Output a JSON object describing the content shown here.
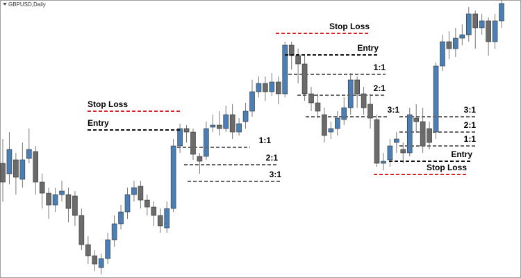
{
  "chart_data": {
    "type": "candlestick",
    "title": "GBPUSD,Daily",
    "ylim": [
      0,
      400
    ],
    "up_color": "#4a7fb6",
    "down_color": "#6b6b6b",
    "open": [
      165,
      150,
      170,
      142,
      172,
      182,
      138,
      122,
      105,
      120,
      120,
      118,
      90,
      48,
      32,
      15,
      28,
      55,
      78,
      95,
      120,
      132,
      112,
      102,
      90,
      72,
      100,
      190,
      215,
      210,
      175,
      175,
      217,
      220,
      215,
      235,
      210,
      225,
      240,
      268,
      280,
      268,
      282,
      265,
      335,
      320,
      308,
      265,
      252,
      235,
      210,
      215,
      228,
      245,
      285,
      265,
      250,
      228,
      165,
      170,
      195,
      185,
      180,
      230,
      225,
      215,
      210,
      305,
      340,
      330,
      345,
      350,
      380,
      360,
      370,
      340,
      370
    ],
    "high": [
      200,
      210,
      180,
      195,
      215,
      190,
      150,
      130,
      130,
      140,
      130,
      125,
      100,
      60,
      40,
      35,
      65,
      90,
      105,
      130,
      140,
      140,
      120,
      110,
      100,
      110,
      200,
      222,
      220,
      215,
      180,
      225,
      235,
      240,
      248,
      250,
      230,
      252,
      285,
      290,
      290,
      295,
      290,
      340,
      340,
      330,
      320,
      275,
      265,
      245,
      225,
      240,
      260,
      295,
      290,
      275,
      265,
      235,
      180,
      200,
      210,
      195,
      245,
      250,
      245,
      225,
      310,
      350,
      355,
      360,
      365,
      390,
      385,
      380,
      375,
      380,
      400
    ],
    "low": [
      110,
      135,
      120,
      130,
      165,
      120,
      100,
      85,
      95,
      110,
      80,
      75,
      40,
      20,
      10,
      5,
      20,
      45,
      70,
      85,
      110,
      100,
      90,
      75,
      65,
      65,
      95,
      180,
      195,
      170,
      150,
      170,
      210,
      205,
      210,
      200,
      205,
      215,
      232,
      260,
      255,
      262,
      250,
      260,
      300,
      280,
      255,
      240,
      230,
      195,
      200,
      205,
      220,
      235,
      245,
      235,
      215,
      160,
      155,
      160,
      180,
      165,
      175,
      210,
      180,
      185,
      200,
      298,
      315,
      318,
      335,
      340,
      330,
      350,
      320,
      330,
      360
    ],
    "close": [
      138,
      185,
      145,
      170,
      185,
      138,
      122,
      105,
      120,
      125,
      100,
      90,
      48,
      32,
      20,
      28,
      55,
      78,
      95,
      120,
      130,
      112,
      102,
      90,
      75,
      100,
      190,
      215,
      210,
      178,
      168,
      215,
      220,
      215,
      235,
      210,
      222,
      240,
      268,
      280,
      268,
      282,
      265,
      335,
      320,
      308,
      265,
      252,
      240,
      205,
      215,
      230,
      245,
      285,
      265,
      245,
      230,
      165,
      168,
      190,
      200,
      180,
      235,
      225,
      190,
      195,
      305,
      340,
      330,
      345,
      350,
      380,
      360,
      370,
      340,
      370,
      395
    ],
    "setups": [
      {
        "levels": [
          {
            "label": "Stop Loss",
            "value": 240
          },
          {
            "label": "Entry",
            "value": 213
          },
          {
            "label": "1:1",
            "value": 188
          },
          {
            "label": "2:1",
            "value": 163
          },
          {
            "label": "3:1",
            "value": 139
          }
        ]
      },
      {
        "levels": [
          {
            "label": "Stop Loss",
            "value": 352
          },
          {
            "label": "Entry",
            "value": 321
          },
          {
            "label": "1:1",
            "value": 293
          },
          {
            "label": "2:1",
            "value": 263
          },
          {
            "label": "3:1",
            "value": 232
          }
        ]
      },
      {
        "levels": [
          {
            "label": "Stop Loss",
            "value": 149
          },
          {
            "label": "Entry",
            "value": 168
          },
          {
            "label": "1:1",
            "value": 190
          },
          {
            "label": "2:1",
            "value": 210
          },
          {
            "label": "3:1",
            "value": 232
          }
        ]
      }
    ]
  }
}
